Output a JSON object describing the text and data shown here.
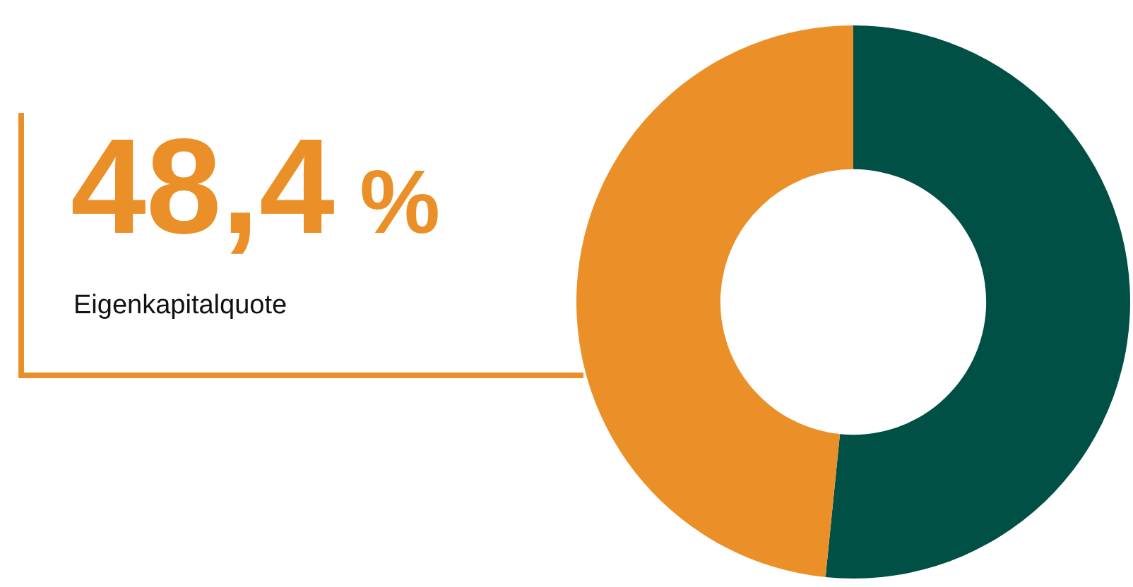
{
  "chart_data": {
    "type": "donut",
    "title": "Eigenkapitalquote",
    "categories": [
      null,
      null
    ],
    "values": [
      51.6,
      48.4
    ],
    "colors": [
      "#005045",
      "#eb9029"
    ],
    "value_labels": [
      null,
      "48,4 %"
    ]
  }
}
